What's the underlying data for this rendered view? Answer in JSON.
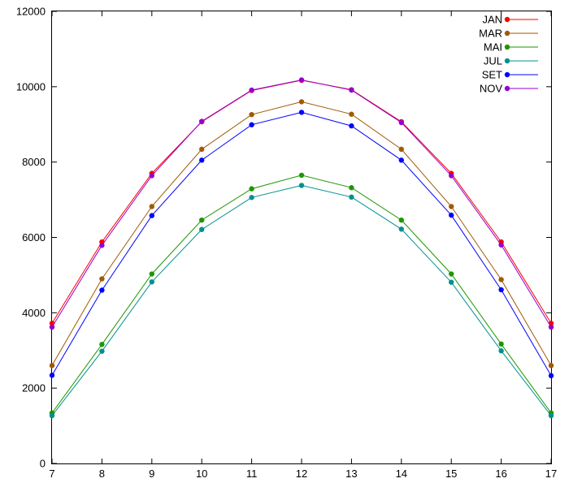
{
  "chart_data": {
    "type": "line",
    "title": "",
    "xlabel": "",
    "ylabel": "",
    "xlim": [
      7,
      17
    ],
    "ylim": [
      0,
      12000
    ],
    "x_ticks": [
      7,
      8,
      9,
      10,
      11,
      12,
      13,
      14,
      15,
      16,
      17
    ],
    "y_ticks": [
      0,
      2000,
      4000,
      6000,
      8000,
      10000,
      12000
    ],
    "grid": false,
    "legend_position": "top-right",
    "x": [
      7,
      8,
      9,
      10,
      11,
      12,
      13,
      14,
      15,
      16,
      17
    ],
    "series": [
      {
        "name": "JAN",
        "color": "#ff0000",
        "values": [
          3720,
          5880,
          7700,
          9070,
          9900,
          10170,
          9920,
          9070,
          7700,
          5880,
          3720
        ]
      },
      {
        "name": "MAR",
        "color": "#a05a00",
        "values": [
          2600,
          4900,
          6820,
          8340,
          9260,
          9600,
          9270,
          8340,
          6820,
          4880,
          2600
        ]
      },
      {
        "name": "MAI",
        "color": "#1e9600",
        "values": [
          1340,
          3160,
          5030,
          6460,
          7290,
          7650,
          7320,
          6460,
          5030,
          3170,
          1340
        ]
      },
      {
        "name": "JUL",
        "color": "#009090",
        "values": [
          1270,
          2980,
          4820,
          6210,
          7060,
          7380,
          7070,
          6220,
          4810,
          2990,
          1270
        ]
      },
      {
        "name": "SET",
        "color": "#0000ff",
        "values": [
          2340,
          4600,
          6580,
          8050,
          8990,
          9320,
          8960,
          8050,
          6590,
          4610,
          2330
        ]
      },
      {
        "name": "NOV",
        "color": "#9400d3",
        "values": [
          3620,
          5790,
          7640,
          9080,
          9910,
          10180,
          9910,
          9050,
          7640,
          5800,
          3620
        ]
      }
    ]
  }
}
